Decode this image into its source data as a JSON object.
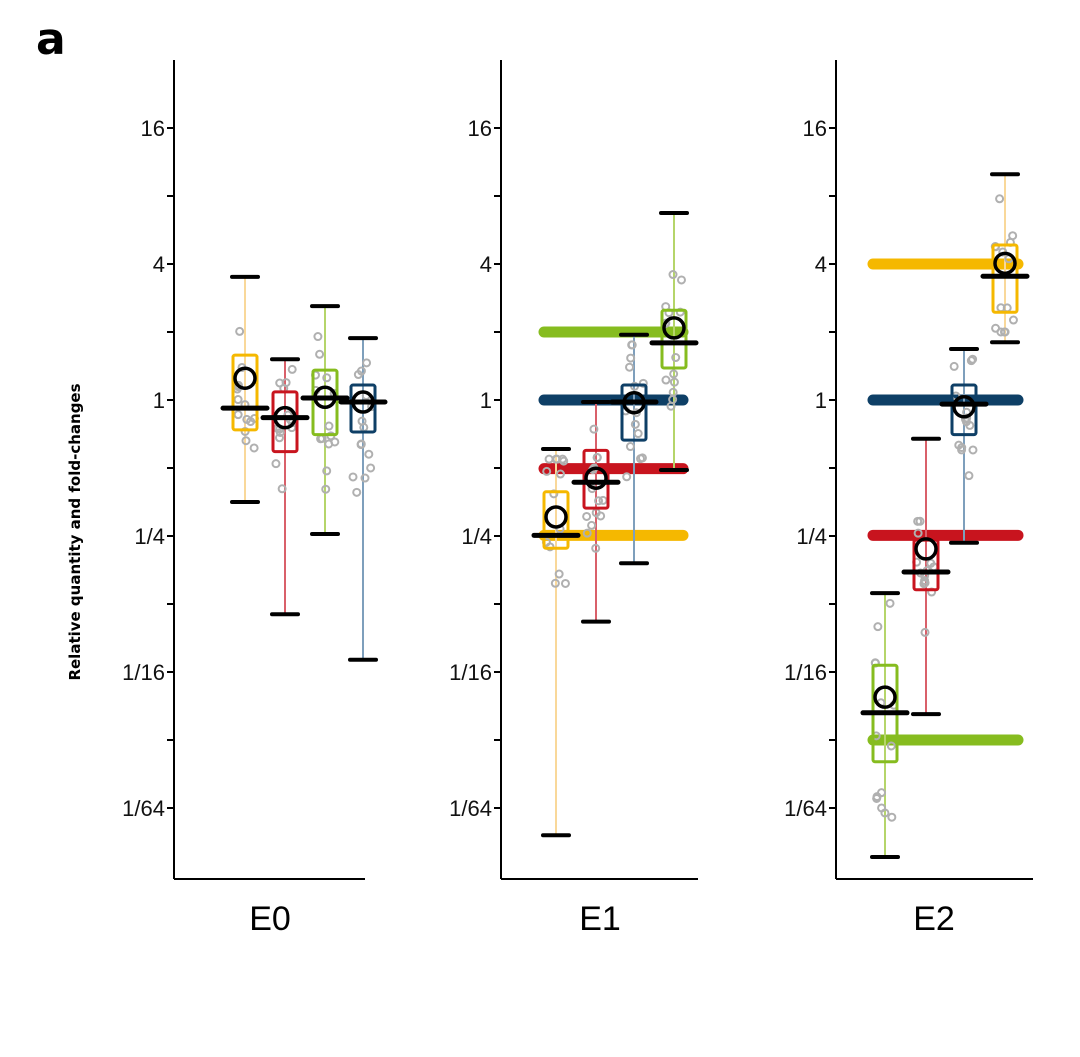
{
  "figure": {
    "panel_label": "a",
    "ylabel": "Relative quantity and fold-changes"
  },
  "chart_data": {
    "type": "box",
    "title": "",
    "ylabel": "Relative quantity and fold-changes",
    "yscale": "log2",
    "ylim_log2": [
      -7.2,
      5.0
    ],
    "yticks": [
      {
        "log2": 4,
        "label": "16"
      },
      {
        "log2": 3,
        "label": ""
      },
      {
        "log2": 2,
        "label": "4"
      },
      {
        "log2": 1,
        "label": ""
      },
      {
        "log2": 0,
        "label": "1"
      },
      {
        "log2": -1,
        "label": ""
      },
      {
        "log2": -2,
        "label": "1/4"
      },
      {
        "log2": -3,
        "label": ""
      },
      {
        "log2": -4,
        "label": "1/16"
      },
      {
        "log2": -5,
        "label": ""
      },
      {
        "log2": -6,
        "label": "1/64"
      }
    ],
    "colors": {
      "orange": "#F5B800",
      "red": "#C8141E",
      "green": "#86BC1F",
      "blue": "#0E3F66",
      "orange_whisker": "#F9D89A",
      "red_whisker": "#D9606A",
      "green_whisker": "#B5D56A",
      "blue_whisker": "#7E9FBC",
      "point": "#B0B0B0"
    },
    "panels": [
      {
        "name": "E0",
        "boxes": [
          {
            "color": "orange",
            "whisker_hi": 1.81,
            "q3": 0.66,
            "median": -0.12,
            "q1": -0.44,
            "whisker_lo": -1.5,
            "mean": 0.32
          },
          {
            "color": "red",
            "whisker_hi": 0.6,
            "q3": 0.12,
            "median": -0.26,
            "q1": -0.76,
            "whisker_lo": -3.15,
            "mean": -0.26
          },
          {
            "color": "green",
            "whisker_hi": 1.38,
            "q3": 0.44,
            "median": 0.03,
            "q1": -0.51,
            "whisker_lo": -1.97,
            "mean": 0.04
          },
          {
            "color": "blue",
            "whisker_hi": 0.91,
            "q3": 0.22,
            "median": -0.03,
            "q1": -0.47,
            "whisker_lo": -3.82,
            "mean": -0.03
          }
        ],
        "reference_bars": []
      },
      {
        "name": "E1",
        "boxes": [
          {
            "color": "orange",
            "whisker_hi": -0.72,
            "q3": -1.35,
            "median": -1.99,
            "q1": -2.18,
            "whisker_lo": -6.4,
            "mean": -1.72
          },
          {
            "color": "red",
            "whisker_hi": -0.03,
            "q3": -0.74,
            "median": -1.21,
            "q1": -1.59,
            "whisker_lo": -3.26,
            "mean": -1.15
          },
          {
            "color": "blue",
            "whisker_hi": 0.96,
            "q3": 0.22,
            "median": -0.03,
            "q1": -0.59,
            "whisker_lo": -2.4,
            "mean": -0.04
          },
          {
            "color": "green",
            "whisker_hi": 2.75,
            "q3": 1.32,
            "median": 0.84,
            "q1": 0.47,
            "whisker_lo": -1.03,
            "mean": 1.06
          }
        ],
        "reference_bars": [
          {
            "color": "green",
            "log2": 1.0
          },
          {
            "color": "blue",
            "log2": 0.0
          },
          {
            "color": "red",
            "log2": -1.01
          },
          {
            "color": "orange",
            "log2": -1.99
          }
        ]
      },
      {
        "name": "E2",
        "boxes": [
          {
            "color": "green",
            "whisker_hi": -2.84,
            "q3": -3.9,
            "median": -4.6,
            "q1": -5.32,
            "whisker_lo": -6.72,
            "mean": -4.37
          },
          {
            "color": "red",
            "whisker_hi": -0.57,
            "q3": -2.06,
            "median": -2.53,
            "q1": -2.79,
            "whisker_lo": -4.62,
            "mean": -2.19
          },
          {
            "color": "blue",
            "whisker_hi": 0.75,
            "q3": 0.22,
            "median": -0.06,
            "q1": -0.51,
            "whisker_lo": -2.1,
            "mean": -0.1
          },
          {
            "color": "orange",
            "whisker_hi": 3.32,
            "q3": 2.28,
            "median": 1.82,
            "q1": 1.29,
            "whisker_lo": 0.85,
            "mean": 2.01
          }
        ],
        "reference_bars": [
          {
            "color": "orange",
            "log2": 2.0
          },
          {
            "color": "blue",
            "log2": 0.0
          },
          {
            "color": "red",
            "log2": -1.99
          },
          {
            "color": "green",
            "log2": -5.0
          }
        ]
      }
    ]
  }
}
